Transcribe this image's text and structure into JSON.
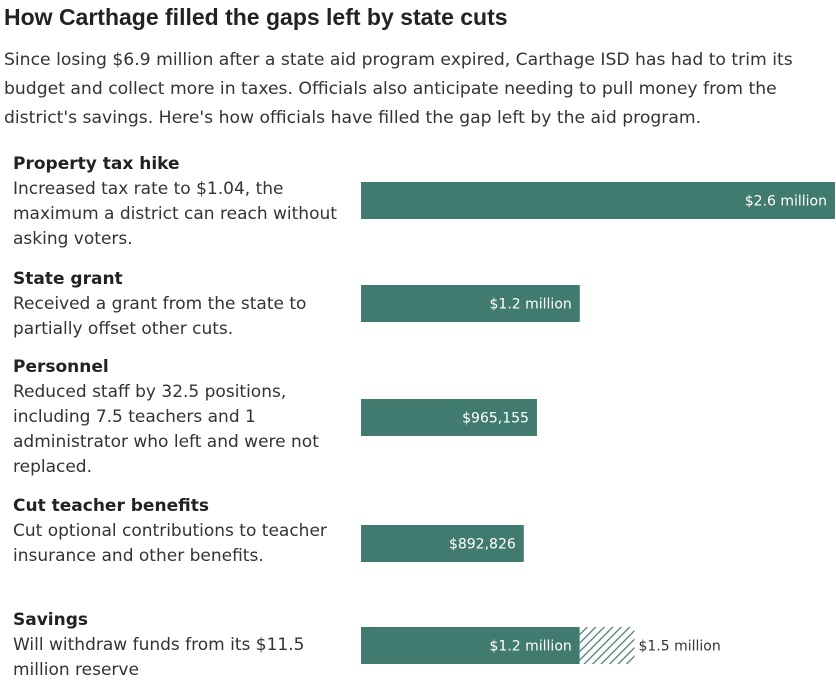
{
  "title": "How Carthage filled the gaps left by state cuts",
  "subtitle": "Since losing $6.9 million after a state aid program expired, Carthage ISD has had to trim its budget and collect more in taxes. Officials also anticipate needing to pull money from the district's savings. Here's how officials have filled the gap left by the aid program.",
  "colors": {
    "bar": "#417a6f",
    "hatch": "#417a6f",
    "background": "#ffffff"
  },
  "chart_data": {
    "type": "bar",
    "orientation": "horizontal",
    "unit": "USD",
    "xlim": [
      0,
      2600000
    ],
    "grid": false,
    "legend": "none",
    "rows": [
      {
        "name": "Property tax hike",
        "description": "Increased tax rate to $1.04, the maximum a district can reach without asking voters.",
        "value": 2600000,
        "label": "$2.6 million"
      },
      {
        "name": "State grant",
        "description": "Received a grant from the state to partially offset other cuts.",
        "value": 1200000,
        "label": "$1.2 million"
      },
      {
        "name": "Personnel",
        "description": "Reduced staff by 32.5 positions, including 7.5 teachers and 1 administrator who left and were not replaced.",
        "value": 965155,
        "label": "$965,155"
      },
      {
        "name": "Cut teacher benefits",
        "description": "Cut optional contributions to teacher insurance and other benefits.",
        "value": 892826,
        "label": "$892,826"
      },
      {
        "name": "Savings",
        "description": "Will withdraw funds from its $11.5 million reserve",
        "value": 1200000,
        "label": "$1.2 million",
        "projected_total": 1500000,
        "projected_label": "$1.5 million"
      }
    ]
  }
}
